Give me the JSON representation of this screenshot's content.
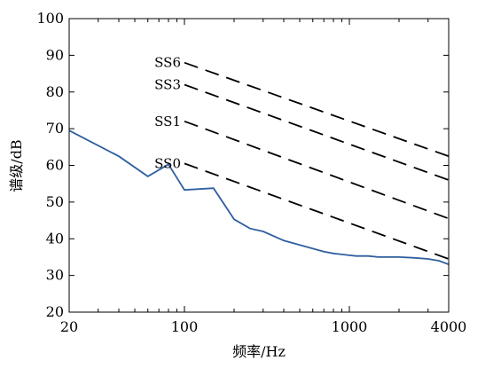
{
  "chart_data": {
    "type": "line",
    "title": "",
    "xlabel": "频率/Hz",
    "ylabel": "谱级/dB",
    "x_scale": "log",
    "xlim": [
      20,
      4000
    ],
    "ylim": [
      20,
      100
    ],
    "x_ticks": [
      20,
      100,
      1000,
      4000
    ],
    "x_tick_labels": [
      "20",
      "100",
      "1000",
      "4000"
    ],
    "y_ticks": [
      20,
      30,
      40,
      50,
      60,
      70,
      80,
      90,
      100
    ],
    "y_tick_labels": [
      "20",
      "30",
      "40",
      "50",
      "60",
      "70",
      "80",
      "90",
      "100"
    ],
    "grid": false,
    "series": [
      {
        "label_id": "measured",
        "color": "#2f5f9e",
        "style": "solid",
        "x": [
          20,
          40,
          60,
          80,
          100,
          150,
          200,
          250,
          300,
          400,
          500,
          700,
          800,
          1000,
          1100,
          1300,
          1500,
          2000,
          2500,
          3000,
          3500,
          4000
        ],
        "y": [
          69.5,
          62.5,
          57,
          60.3,
          53.3,
          53.8,
          45.3,
          42.8,
          42,
          39.5,
          38.3,
          36.5,
          36,
          35.5,
          35.3,
          35.3,
          35,
          35,
          34.8,
          34.5,
          34,
          33
        ]
      },
      {
        "name": "SS6",
        "color": "#000000",
        "style": "dashed",
        "x": [
          100,
          4000
        ],
        "y": [
          88,
          62.5
        ]
      },
      {
        "name": "SS3",
        "color": "#000000",
        "style": "dashed",
        "x": [
          100,
          4000
        ],
        "y": [
          82,
          56
        ]
      },
      {
        "name": "SS1",
        "color": "#000000",
        "style": "dashed",
        "x": [
          100,
          4000
        ],
        "y": [
          72,
          45.5
        ]
      },
      {
        "name": "SS0",
        "color": "#000000",
        "style": "dashed",
        "x": [
          100,
          4000
        ],
        "y": [
          60.5,
          34.5
        ]
      }
    ]
  }
}
